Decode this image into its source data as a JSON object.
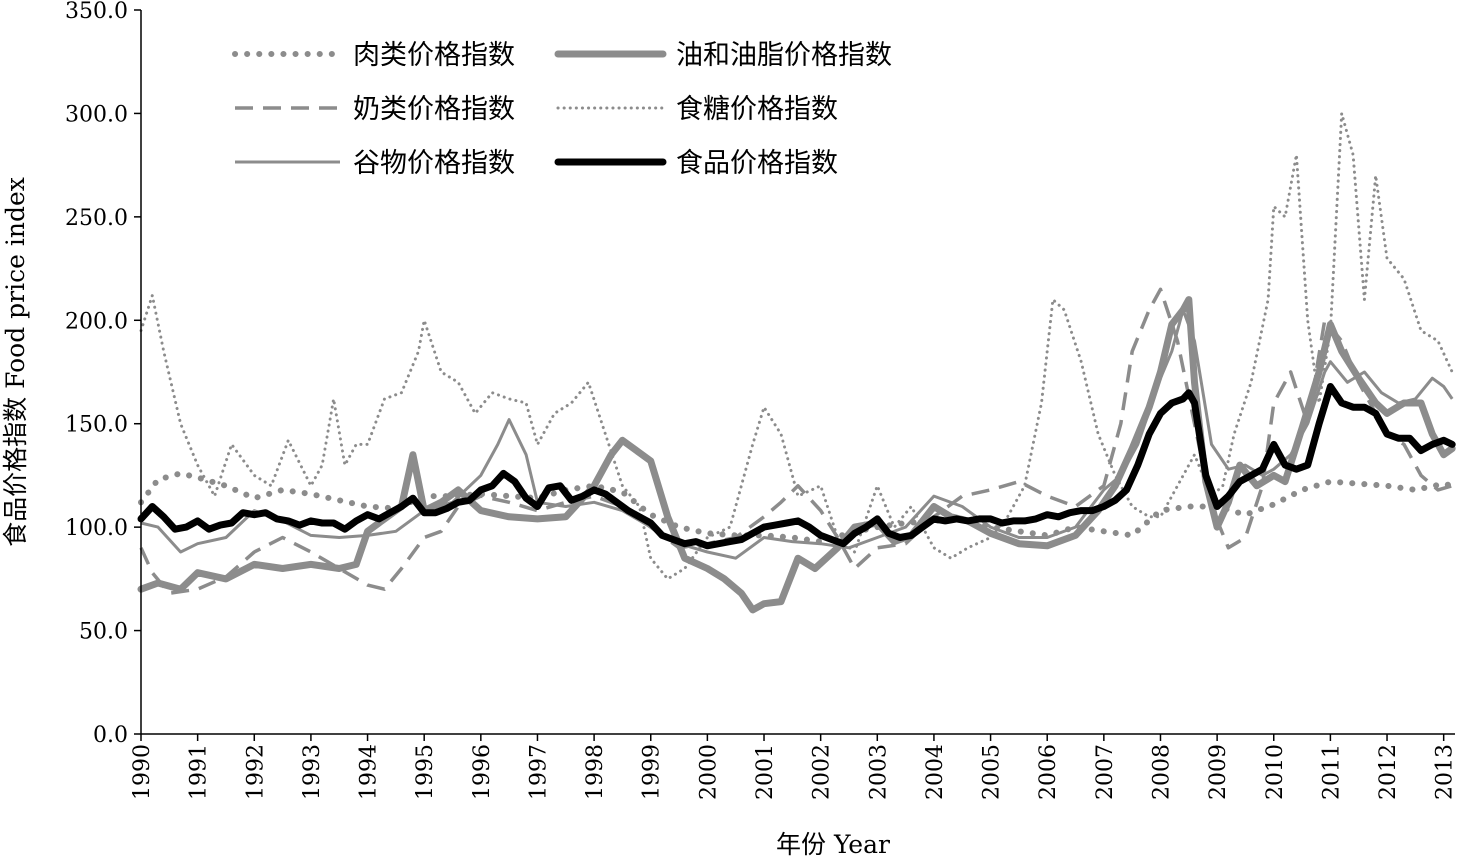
{
  "chart_data": {
    "type": "line",
    "xlabel": "年份 Year",
    "ylabel": "食品价格指数 Food price index",
    "ylim": [
      0,
      350
    ],
    "yticks": [
      "0.0",
      "50.0",
      "100.0",
      "150.0",
      "200.0",
      "250.0",
      "300.0",
      "350.0"
    ],
    "xlim": [
      1990,
      2013.2
    ],
    "xticks": [
      "1990",
      "1991",
      "1992",
      "1993",
      "1994",
      "1995",
      "1996",
      "1997",
      "1998",
      "1999",
      "2000",
      "2001",
      "2002",
      "2003",
      "2004",
      "2005",
      "2006",
      "2007",
      "2008",
      "2009",
      "2010",
      "2011",
      "2012",
      "2013"
    ],
    "grid": false,
    "legend_position": "top-left",
    "series": [
      {
        "name": "肉类价格指数",
        "style": "dotted-thick",
        "color": "#8c8c8c",
        "x": [
          1990.0,
          1990.3,
          1990.7,
          1991.0,
          1991.5,
          1992.0,
          1992.5,
          1993.0,
          1993.5,
          1994.0,
          1994.5,
          1995.0,
          1995.5,
          1996.0,
          1996.5,
          1997.0,
          1997.5,
          1998.0,
          1998.5,
          1999.0,
          1999.5,
          2000.0,
          2000.5,
          2001.0,
          2001.5,
          2002.0,
          2002.5,
          2003.0,
          2003.5,
          2004.0,
          2004.5,
          2005.0,
          2005.5,
          2006.0,
          2006.5,
          2007.0,
          2007.5,
          2008.0,
          2008.5,
          2009.0,
          2009.5,
          2010.0,
          2010.5,
          2011.0,
          2011.5,
          2012.0,
          2012.5,
          2013.0,
          2013.15
        ],
        "y": [
          112,
          123,
          126,
          124,
          120,
          114,
          118,
          116,
          113,
          110,
          109,
          115,
          115,
          116,
          115,
          114,
          118,
          120,
          117,
          106,
          100,
          97,
          96,
          96,
          95,
          93,
          97,
          100,
          102,
          103,
          104,
          100,
          98,
          96,
          100,
          98,
          96,
          108,
          110,
          110,
          106,
          111,
          118,
          122,
          121,
          120,
          118,
          121,
          120
        ]
      },
      {
        "name": "油和油脂价格指数",
        "style": "solid-thick",
        "color": "#8c8c8c",
        "x": [
          1990.0,
          1990.3,
          1990.7,
          1991.0,
          1991.5,
          1992.0,
          1992.5,
          1993.0,
          1993.5,
          1993.8,
          1994.0,
          1994.3,
          1994.6,
          1994.8,
          1995.0,
          1995.3,
          1995.6,
          1996.0,
          1996.5,
          1997.0,
          1997.5,
          1998.0,
          1998.3,
          1998.5,
          1998.8,
          1999.0,
          1999.3,
          1999.6,
          2000.0,
          2000.3,
          2000.6,
          2000.8,
          2001.0,
          2001.3,
          2001.6,
          2001.9,
          2002.3,
          2002.6,
          2003.0,
          2003.3,
          2003.6,
          2004.0,
          2004.3,
          2004.6,
          2005.0,
          2005.5,
          2006.0,
          2006.5,
          2006.9,
          2007.2,
          2007.5,
          2007.8,
          2008.0,
          2008.2,
          2008.4,
          2008.5,
          2008.6,
          2008.8,
          2009.0,
          2009.2,
          2009.4,
          2009.7,
          2010.0,
          2010.2,
          2010.5,
          2010.8,
          2011.0,
          2011.2,
          2011.5,
          2011.8,
          2012.0,
          2012.3,
          2012.6,
          2012.8,
          2013.0,
          2013.15
        ],
        "y": [
          70,
          73,
          70,
          78,
          75,
          82,
          80,
          82,
          80,
          82,
          98,
          104,
          110,
          135,
          108,
          112,
          118,
          108,
          105,
          104,
          105,
          120,
          135,
          142,
          136,
          132,
          105,
          85,
          80,
          75,
          68,
          60,
          63,
          64,
          85,
          80,
          90,
          100,
          102,
          93,
          96,
          110,
          105,
          103,
          97,
          92,
          91,
          96,
          108,
          120,
          138,
          158,
          175,
          198,
          205,
          210,
          170,
          122,
          100,
          112,
          130,
          120,
          125,
          122,
          148,
          175,
          198,
          185,
          172,
          160,
          155,
          160,
          160,
          145,
          135,
          138
        ]
      },
      {
        "name": "奶类价格指数",
        "style": "dashed",
        "color": "#8c8c8c",
        "x": [
          1990.0,
          1990.2,
          1990.5,
          1991.0,
          1991.5,
          1992.0,
          1992.5,
          1993.0,
          1993.5,
          1994.0,
          1994.3,
          1994.6,
          1995.0,
          1995.3,
          1995.6,
          1996.0,
          1996.5,
          1997.0,
          1997.5,
          1998.0,
          1998.5,
          1999.0,
          1999.5,
          2000.0,
          2000.5,
          2001.0,
          2001.3,
          2001.6,
          2002.0,
          2002.3,
          2002.6,
          2003.0,
          2003.5,
          2004.0,
          2004.5,
          2005.0,
          2005.5,
          2006.0,
          2006.5,
          2007.0,
          2007.3,
          2007.5,
          2007.8,
          2008.0,
          2008.3,
          2008.6,
          2008.9,
          2009.2,
          2009.5,
          2009.8,
          2010.0,
          2010.3,
          2010.6,
          2010.9,
          2011.2,
          2011.5,
          2011.8,
          2012.0,
          2012.3,
          2012.6,
          2012.9,
          2013.15
        ],
        "y": [
          90,
          78,
          68,
          70,
          76,
          88,
          95,
          88,
          80,
          72,
          70,
          80,
          95,
          98,
          110,
          115,
          112,
          108,
          112,
          115,
          110,
          100,
          90,
          92,
          95,
          105,
          112,
          120,
          108,
          95,
          80,
          90,
          92,
          105,
          115,
          118,
          122,
          115,
          110,
          120,
          150,
          185,
          205,
          215,
          190,
          150,
          110,
          90,
          95,
          120,
          160,
          175,
          150,
          200,
          190,
          170,
          155,
          145,
          140,
          125,
          118,
          120
        ]
      },
      {
        "name": "食糖价格指数",
        "style": "dotted-thin",
        "color": "#8c8c8c",
        "x": [
          1990.0,
          1990.2,
          1990.4,
          1990.7,
          1991.0,
          1991.3,
          1991.6,
          1992.0,
          1992.3,
          1992.6,
          1993.0,
          1993.2,
          1993.4,
          1993.6,
          1993.8,
          1994.0,
          1994.3,
          1994.6,
          1994.9,
          1995.0,
          1995.3,
          1995.6,
          1995.9,
          1996.2,
          1996.5,
          1996.8,
          1997.0,
          1997.3,
          1997.6,
          1997.9,
          1998.2,
          1998.5,
          1998.8,
          1999.0,
          1999.3,
          1999.6,
          2000.0,
          2000.4,
          2000.8,
          2001.0,
          2001.3,
          2001.6,
          2002.0,
          2002.3,
          2002.6,
          2003.0,
          2003.3,
          2003.6,
          2004.0,
          2004.3,
          2004.6,
          2005.0,
          2005.3,
          2005.6,
          2005.9,
          2006.1,
          2006.3,
          2006.6,
          2006.9,
          2007.2,
          2007.5,
          2007.8,
          2008.0,
          2008.3,
          2008.6,
          2008.9,
          2009.1,
          2009.3,
          2009.6,
          2009.9,
          2010.0,
          2010.2,
          2010.4,
          2010.6,
          2010.8,
          2011.0,
          2011.2,
          2011.4,
          2011.6,
          2011.8,
          2012.0,
          2012.3,
          2012.6,
          2012.9,
          2013.15
        ],
        "y": [
          195,
          212,
          185,
          150,
          130,
          115,
          140,
          125,
          120,
          142,
          120,
          130,
          162,
          130,
          140,
          140,
          162,
          165,
          185,
          200,
          175,
          170,
          155,
          165,
          162,
          160,
          140,
          155,
          160,
          170,
          145,
          120,
          110,
          85,
          75,
          80,
          95,
          100,
          140,
          158,
          145,
          115,
          120,
          95,
          88,
          120,
          100,
          110,
          90,
          85,
          90,
          95,
          105,
          120,
          160,
          210,
          205,
          180,
          145,
          125,
          110,
          105,
          105,
          120,
          135,
          115,
          120,
          145,
          170,
          210,
          255,
          250,
          280,
          200,
          160,
          195,
          300,
          280,
          210,
          270,
          230,
          220,
          195,
          190,
          175
        ]
      },
      {
        "name": "谷物价格指数",
        "style": "solid-thin",
        "color": "#8c8c8c",
        "x": [
          1990.0,
          1990.3,
          1990.7,
          1991.0,
          1991.5,
          1992.0,
          1992.5,
          1993.0,
          1993.5,
          1994.0,
          1994.5,
          1995.0,
          1995.5,
          1996.0,
          1996.3,
          1996.5,
          1996.8,
          1997.0,
          1997.5,
          1998.0,
          1998.5,
          1999.0,
          1999.5,
          2000.0,
          2000.5,
          2001.0,
          2001.5,
          2002.0,
          2002.5,
          2003.0,
          2003.5,
          2004.0,
          2004.5,
          2005.0,
          2005.5,
          2006.0,
          2006.5,
          2007.0,
          2007.3,
          2007.6,
          2008.0,
          2008.2,
          2008.4,
          2008.6,
          2008.9,
          2009.2,
          2009.5,
          2009.8,
          2010.0,
          2010.3,
          2010.6,
          2010.9,
          2011.0,
          2011.3,
          2011.6,
          2011.9,
          2012.2,
          2012.5,
          2012.8,
          2013.0,
          2013.15
        ],
        "y": [
          102,
          100,
          88,
          92,
          95,
          108,
          103,
          96,
          95,
          96,
          98,
          108,
          112,
          125,
          140,
          152,
          135,
          112,
          110,
          112,
          108,
          100,
          92,
          88,
          85,
          95,
          93,
          92,
          90,
          95,
          100,
          115,
          110,
          100,
          95,
          95,
          100,
          118,
          125,
          140,
          172,
          185,
          205,
          190,
          140,
          128,
          130,
          125,
          128,
          135,
          150,
          175,
          180,
          170,
          175,
          165,
          160,
          162,
          172,
          168,
          162
        ]
      },
      {
        "name": "食品价格指数",
        "style": "solid-black",
        "color": "#000000",
        "x": [
          1990.0,
          1990.2,
          1990.4,
          1990.6,
          1990.8,
          1991.0,
          1991.2,
          1991.4,
          1991.6,
          1991.8,
          1992.0,
          1992.2,
          1992.4,
          1992.6,
          1992.8,
          1993.0,
          1993.2,
          1993.4,
          1993.6,
          1993.8,
          1994.0,
          1994.2,
          1994.4,
          1994.6,
          1994.8,
          1995.0,
          1995.2,
          1995.4,
          1995.6,
          1995.8,
          1996.0,
          1996.2,
          1996.4,
          1996.6,
          1996.8,
          1997.0,
          1997.2,
          1997.4,
          1997.6,
          1997.8,
          1998.0,
          1998.2,
          1998.4,
          1998.6,
          1998.8,
          1999.0,
          1999.2,
          1999.4,
          1999.6,
          1999.8,
          2000.0,
          2000.2,
          2000.4,
          2000.6,
          2000.8,
          2001.0,
          2001.2,
          2001.4,
          2001.6,
          2001.8,
          2002.0,
          2002.2,
          2002.4,
          2002.6,
          2002.8,
          2003.0,
          2003.2,
          2003.4,
          2003.6,
          2003.8,
          2004.0,
          2004.2,
          2004.4,
          2004.6,
          2004.8,
          2005.0,
          2005.2,
          2005.4,
          2005.6,
          2005.8,
          2006.0,
          2006.2,
          2006.4,
          2006.6,
          2006.8,
          2007.0,
          2007.2,
          2007.4,
          2007.6,
          2007.8,
          2008.0,
          2008.2,
          2008.4,
          2008.5,
          2008.6,
          2008.8,
          2009.0,
          2009.2,
          2009.4,
          2009.6,
          2009.8,
          2010.0,
          2010.2,
          2010.4,
          2010.6,
          2010.8,
          2011.0,
          2011.2,
          2011.4,
          2011.6,
          2011.8,
          2012.0,
          2012.2,
          2012.4,
          2012.6,
          2012.8,
          2013.0,
          2013.15
        ],
        "y": [
          104,
          110,
          105,
          99,
          100,
          103,
          99,
          101,
          102,
          107,
          106,
          107,
          104,
          103,
          101,
          103,
          102,
          102,
          99,
          103,
          106,
          104,
          107,
          110,
          114,
          107,
          107,
          109,
          112,
          113,
          118,
          120,
          126,
          122,
          114,
          110,
          119,
          120,
          113,
          115,
          118,
          116,
          112,
          108,
          105,
          102,
          96,
          94,
          92,
          93,
          91,
          92,
          93,
          94,
          97,
          100,
          101,
          102,
          103,
          100,
          96,
          94,
          92,
          97,
          100,
          104,
          97,
          95,
          96,
          100,
          104,
          103,
          104,
          103,
          104,
          104,
          102,
          103,
          103,
          104,
          106,
          105,
          107,
          108,
          108,
          110,
          113,
          118,
          130,
          145,
          155,
          160,
          162,
          165,
          160,
          125,
          110,
          115,
          122,
          125,
          128,
          140,
          130,
          128,
          130,
          150,
          168,
          160,
          158,
          158,
          155,
          145,
          143,
          143,
          137,
          140,
          142,
          140
        ]
      }
    ]
  }
}
